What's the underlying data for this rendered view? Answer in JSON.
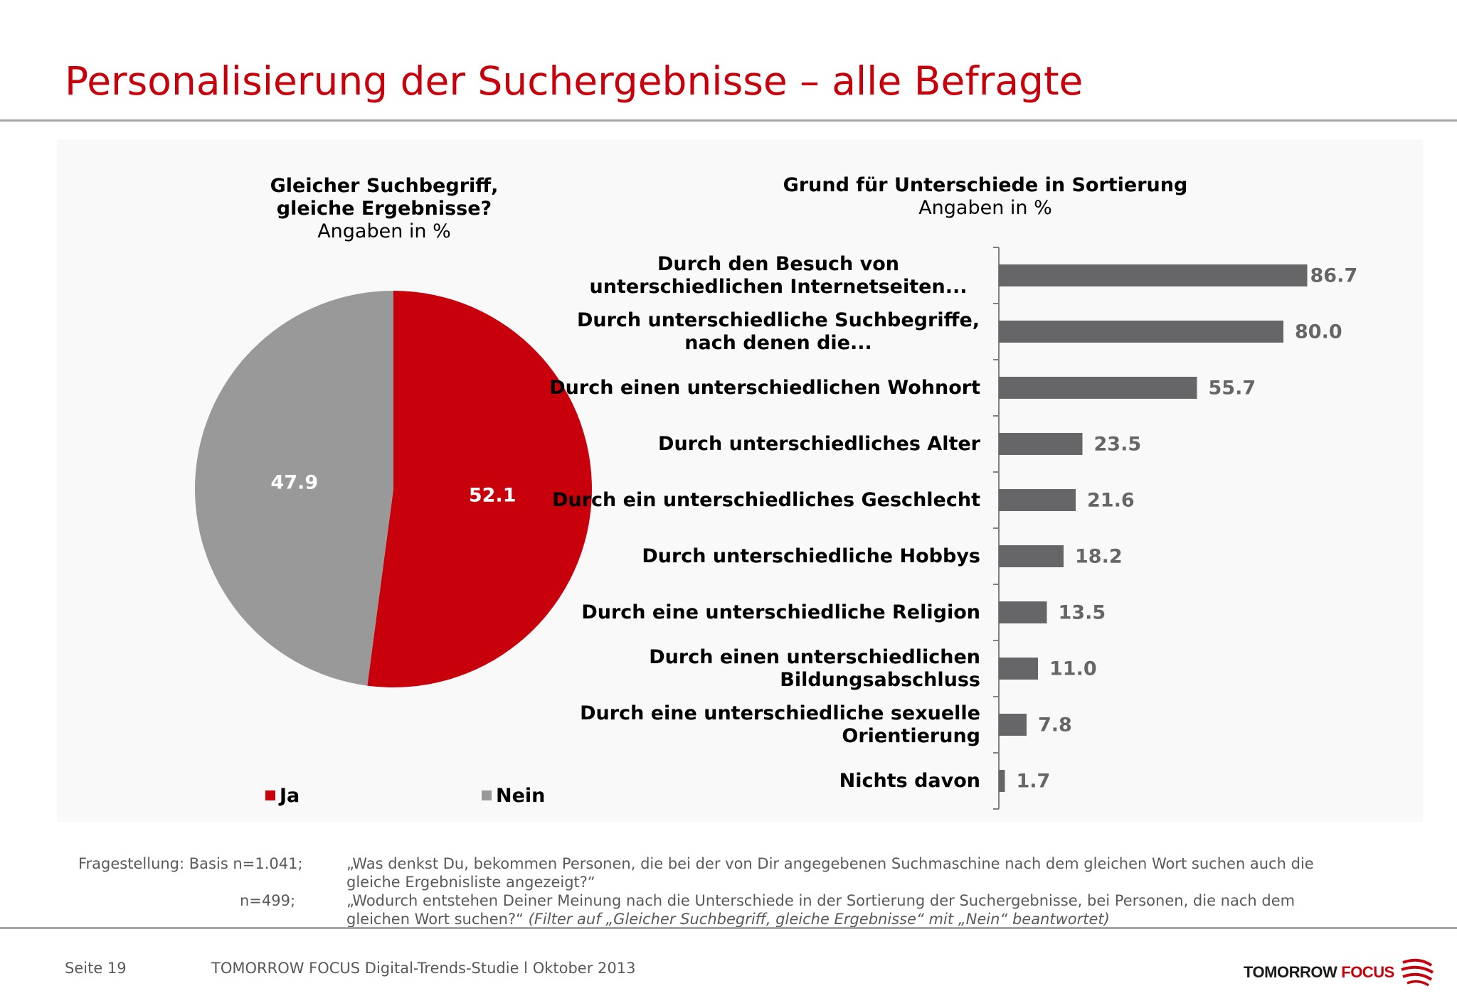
{
  "title": "Personalisierung der Suchergebnisse – alle Befragte",
  "colors": {
    "red": "#c8000b",
    "gray": "#9a999a",
    "bar": "#666567",
    "title_red": "#c8000b"
  },
  "chart_data": [
    {
      "type": "pie",
      "title_bold": "Gleicher Suchbegriff, gleiche Ergebnisse?",
      "title_rest": "Angaben in %",
      "slices": [
        {
          "label": "Ja",
          "value": 52.1,
          "color": "#c8000b"
        },
        {
          "label": "Nein",
          "value": 47.9,
          "color": "#9a999a"
        }
      ],
      "legend": "bottom"
    },
    {
      "type": "bar",
      "orientation": "horizontal",
      "title": "Grund für Unterschiede in Sortierung",
      "subtitle": "Angaben in %",
      "categories": [
        "Durch den Besuch von unterschiedlichen Internetseiten...",
        "Durch unterschiedliche Suchbegriffe, nach denen die...",
        "Durch einen unterschiedlichen Wohnort",
        "Durch unterschiedliches Alter",
        "Durch ein unterschiedliches Geschlecht",
        "Durch unterschiedliche Hobbys",
        "Durch eine unterschiedliche Religion",
        "Durch einen unterschiedlichen Bildungsabschluss",
        "Durch eine unterschiedliche sexuelle Orientierung",
        "Nichts davon"
      ],
      "values": [
        86.7,
        80.0,
        55.7,
        23.5,
        21.6,
        18.2,
        13.5,
        11.0,
        7.8,
        1.7
      ],
      "value_labels": [
        "86.7",
        "80.0",
        "55.7",
        "23.5",
        "21.6",
        "18.2",
        "13.5",
        "11.0",
        "7.8",
        "1.7"
      ],
      "xlim": [
        0,
        100
      ],
      "grid": false
    }
  ],
  "footnote": {
    "label": "Fragestellung: Basis n=1.041;",
    "q1": "„Was denkst Du, bekommen Personen, die bei der von Dir angegebenen Suchmaschine nach dem gleichen Wort suchen auch die gleiche Ergebnisliste angezeigt?“",
    "n2": "n=499;",
    "q2": "„Wodurch entstehen Deiner Meinung nach die Unterschiede in der Sortierung der Suchergebnisse, bei Personen, die nach dem gleichen Wort suchen?“",
    "q2_italic": "(Filter auf „Gleicher Suchbegriff, gleiche Ergebnisse“ mit „Nein“ beantwortet)"
  },
  "footer": {
    "page": "Seite 19",
    "study": "TOMORROW FOCUS Digital-Trends-Studie l Oktober 2013",
    "logo_text_1": "TOMORROW",
    "logo_text_2": "FOCUS"
  }
}
